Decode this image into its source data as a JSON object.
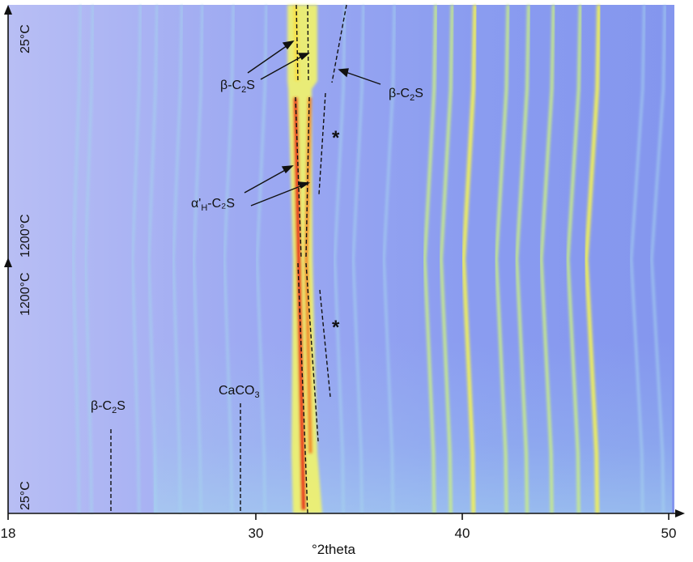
{
  "chart_data": {
    "type": "heatmap",
    "title": "",
    "xlabel": "°2theta",
    "ylabel": "",
    "xlim": [
      18,
      50
    ],
    "x_ticks": [
      18,
      30,
      40,
      50
    ],
    "y_axis_labels": {
      "heating_start": "25°C",
      "heating_end": "1200°C",
      "cooling_start": "1200°C",
      "cooling_end": "25°C"
    },
    "colors": {
      "background": "#8c9ef0",
      "background_left": "#b2baf4",
      "weak_line": "#a6d2ee",
      "medium_line": "#c8ec88",
      "strong_line": "#f0f05a",
      "intense": "#e8361a",
      "dashed_guide": "#111111"
    },
    "annotations": [
      {
        "id": "beta-c2s-top-left",
        "text_main": "β-C",
        "sub": "2",
        "text_end": "S",
        "points_to_2theta": [
          31.6,
          32.1
        ]
      },
      {
        "id": "beta-c2s-top-right",
        "text_main": "β-C",
        "sub": "2",
        "text_end": "S",
        "points_to_2theta": [
          33.3
        ]
      },
      {
        "id": "alpha-h-c2s",
        "text_main": "α'",
        "sub": "H",
        "text_end": "-C₂S",
        "points_to_2theta": [
          31.6,
          32.0
        ]
      },
      {
        "id": "beta-c2s-bottom",
        "text_main": "β-C",
        "sub": "2",
        "text_end": "S",
        "points_to_2theta": [
          23.9
        ]
      },
      {
        "id": "caco3",
        "text_main": "CaCO",
        "sub": "3",
        "text_end": "",
        "points_to_2theta": [
          29.0
        ]
      },
      {
        "id": "star-upper",
        "text_main": "*",
        "sub": "",
        "text_end": ""
      },
      {
        "id": "star-lower",
        "text_main": "*",
        "sub": "",
        "text_end": ""
      }
    ],
    "reflections_2theta": [
      {
        "x": 21.4,
        "intensity": "weak"
      },
      {
        "x": 22.0,
        "intensity": "weak"
      },
      {
        "x": 24.3,
        "intensity": "weak"
      },
      {
        "x": 25.1,
        "intensity": "weak"
      },
      {
        "x": 26.3,
        "intensity": "weak"
      },
      {
        "x": 27.3,
        "intensity": "weak"
      },
      {
        "x": 28.8,
        "intensity": "weak"
      },
      {
        "x": 30.4,
        "intensity": "weak"
      },
      {
        "x": 34.2,
        "intensity": "weak"
      },
      {
        "x": 35.1,
        "intensity": "weak"
      },
      {
        "x": 36.6,
        "intensity": "weak"
      },
      {
        "x": 38.6,
        "intensity": "medium"
      },
      {
        "x": 39.4,
        "intensity": "medium"
      },
      {
        "x": 40.5,
        "intensity": "strong"
      },
      {
        "x": 42.1,
        "intensity": "medium"
      },
      {
        "x": 43.1,
        "intensity": "medium"
      },
      {
        "x": 44.3,
        "intensity": "medium"
      },
      {
        "x": 45.6,
        "intensity": "medium"
      },
      {
        "x": 46.5,
        "intensity": "strong"
      },
      {
        "x": 48.7,
        "intensity": "weak"
      },
      {
        "x": 49.7,
        "intensity": "weak"
      }
    ]
  }
}
